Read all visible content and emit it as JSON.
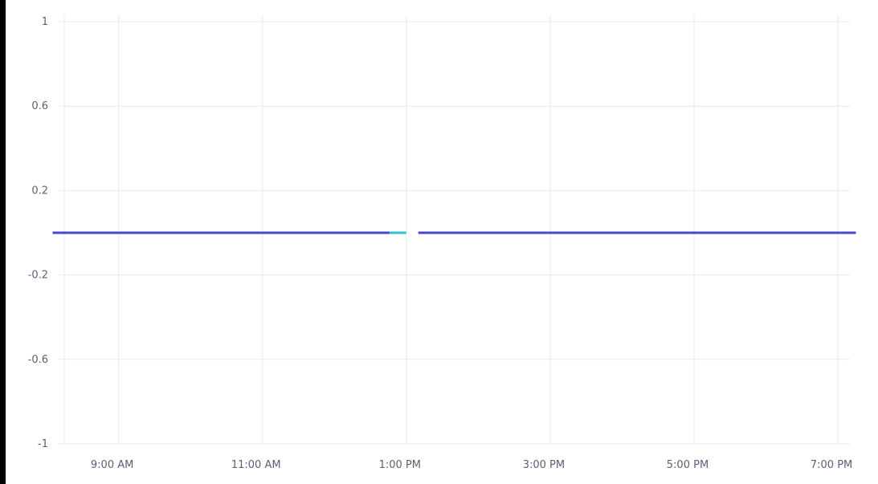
{
  "chart_data": {
    "type": "line",
    "title": "",
    "xlabel": "",
    "ylabel": "",
    "ylim": [
      -1,
      1
    ],
    "xlim": [
      "08:10",
      "19:10"
    ],
    "y_ticks": [
      {
        "value": 1,
        "label": "1"
      },
      {
        "value": 0.6,
        "label": "0.6"
      },
      {
        "value": 0.2,
        "label": "0.2"
      },
      {
        "value": -0.2,
        "label": "-0.2"
      },
      {
        "value": -0.6,
        "label": "-0.6"
      },
      {
        "value": -1,
        "label": "-1"
      }
    ],
    "x_ticks": [
      {
        "time": "09:00",
        "label": "9:00 AM"
      },
      {
        "time": "11:00",
        "label": "11:00 AM"
      },
      {
        "time": "13:00",
        "label": "1:00 PM"
      },
      {
        "time": "15:00",
        "label": "3:00 PM"
      },
      {
        "time": "17:00",
        "label": "5:00 PM"
      },
      {
        "time": "19:00",
        "label": "7:00 PM"
      }
    ],
    "grid": true,
    "legend": "none",
    "series": [
      {
        "color": "#4a46cf",
        "segments": [
          [
            {
              "x": "08:05",
              "y": 0
            },
            {
              "x": "12:46",
              "y": 0
            }
          ],
          [
            {
              "x": "13:10",
              "y": 0
            },
            {
              "x": "19:15",
              "y": 0
            }
          ]
        ]
      },
      {
        "color": "#2ec4c6",
        "segments": [
          [
            {
              "x": "12:46",
              "y": 0
            },
            {
              "x": "13:00",
              "y": 0
            }
          ]
        ]
      }
    ]
  }
}
